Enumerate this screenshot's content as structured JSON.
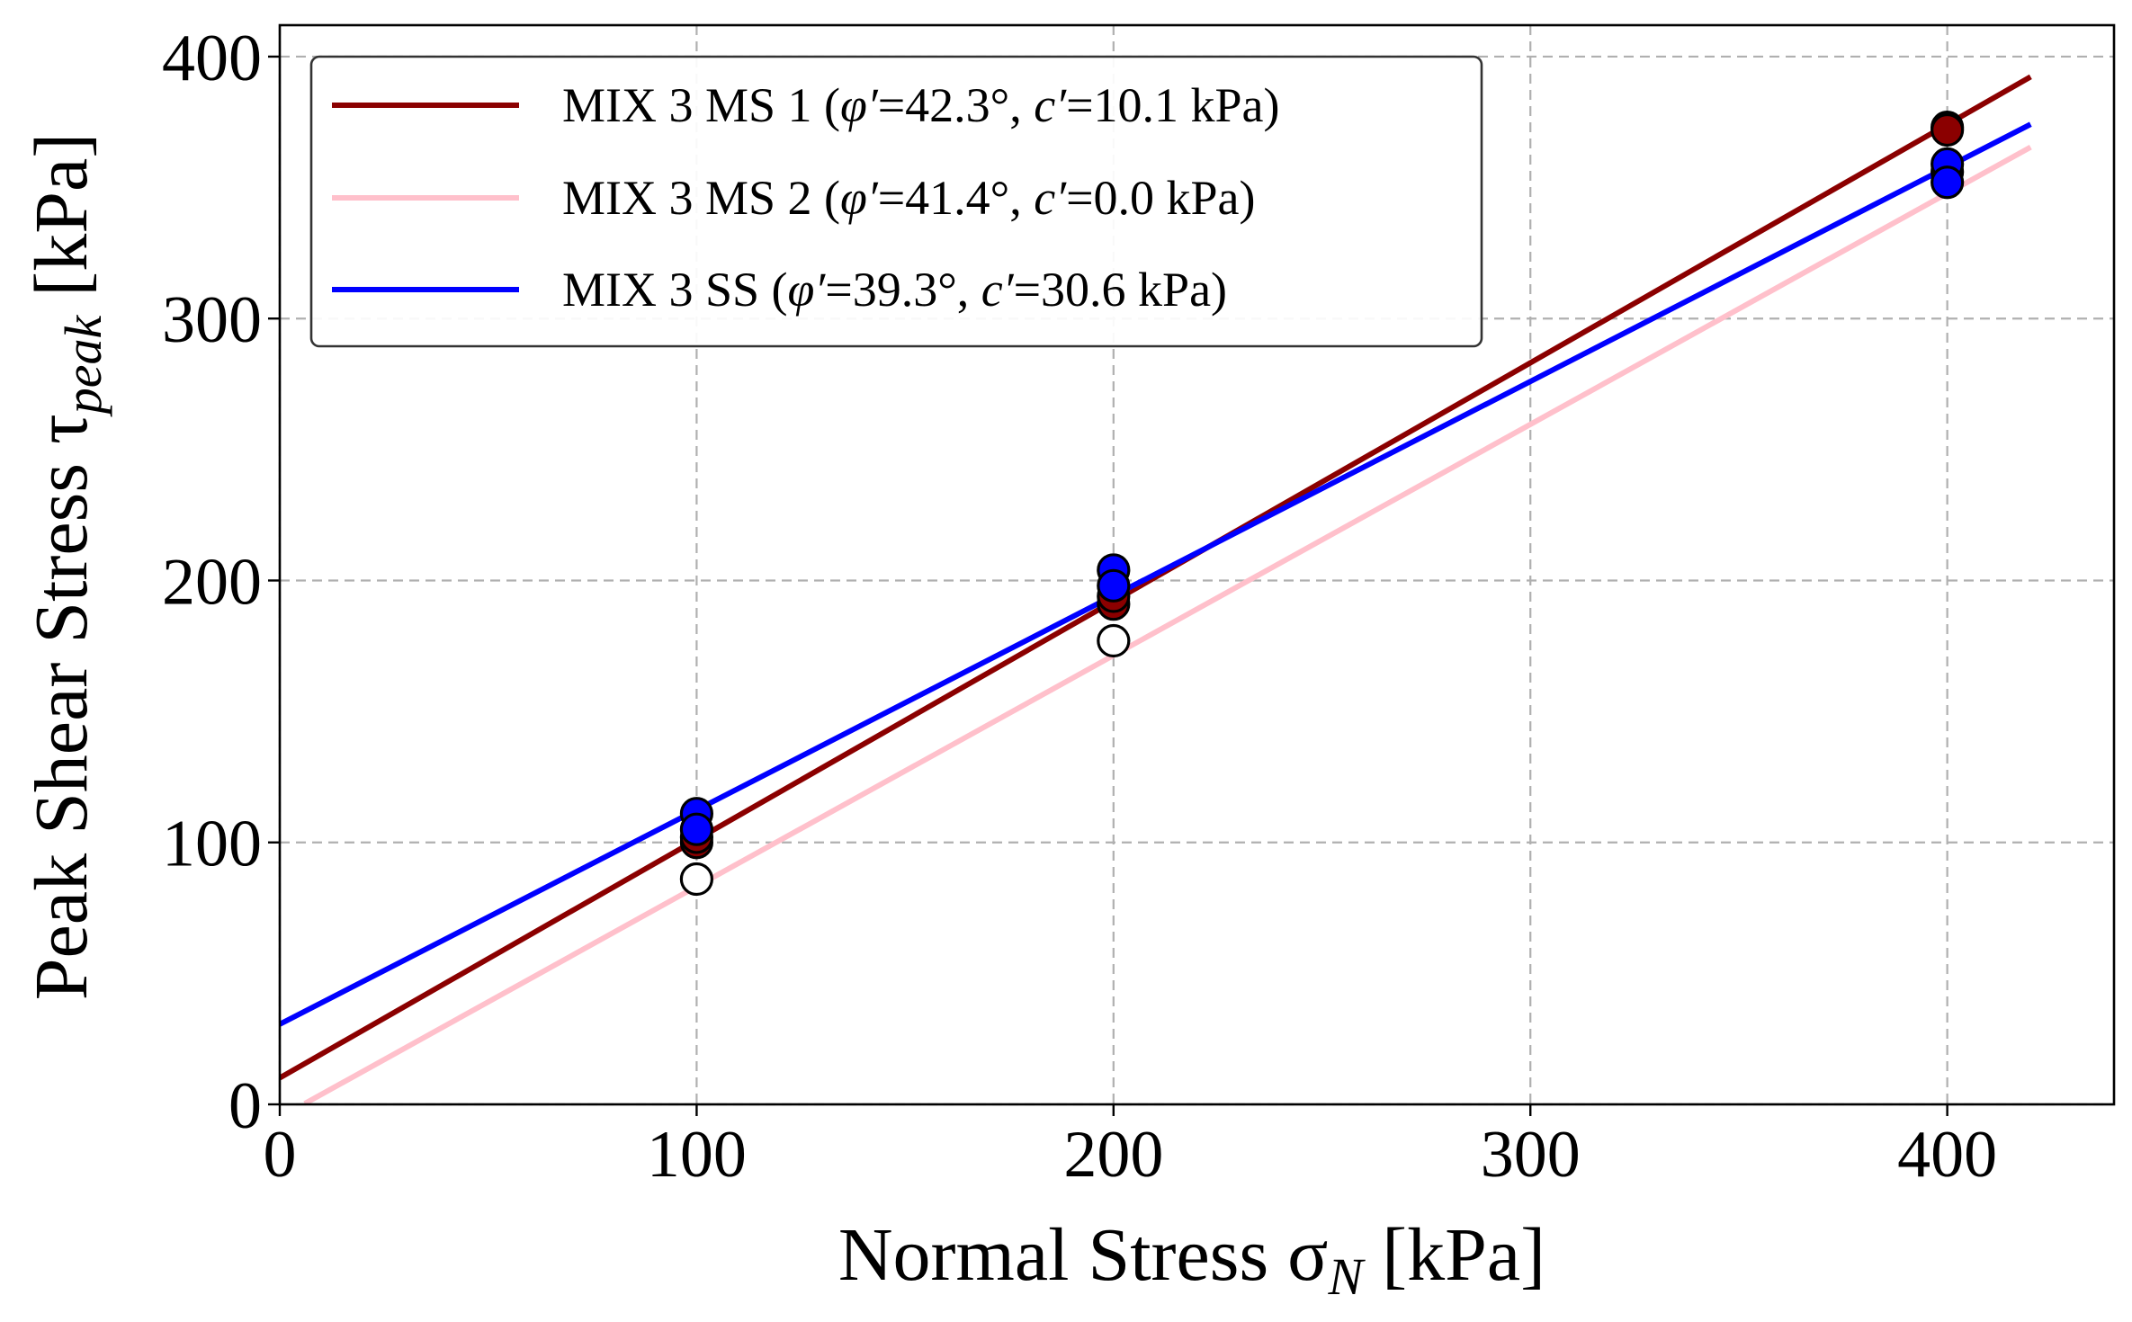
{
  "chart_data": {
    "type": "scatter",
    "xlabel": "Normal Stress σN [kPa]",
    "ylabel": "Peak Shear Stress τpeak [kPa]",
    "xlim": [
      0,
      440
    ],
    "ylim": [
      0,
      412
    ],
    "xticks": [
      0,
      100,
      200,
      300,
      400
    ],
    "yticks": [
      0,
      100,
      200,
      300,
      400
    ],
    "grid": true,
    "legend_position": "top-left",
    "x_labels": {
      "main": "Normal Stress σ",
      "sub": "N",
      "unit": " [kPa]"
    },
    "y_labels": {
      "main": "Peak Shear Stress τ",
      "sub": "peak",
      "unit": " [kPa]"
    },
    "series": [
      {
        "name": "MIX 3 MS 1 (φ′=42.3°, c′=10.1 kPa)",
        "color": "#8b0000",
        "marker_fill": "#8b0000",
        "fit": {
          "slope": 0.91,
          "intercept": 10.1,
          "x_range": [
            0,
            420
          ]
        },
        "points": [
          {
            "x": 100,
            "y": 100
          },
          {
            "x": 100,
            "y": 102
          },
          {
            "x": 200,
            "y": 191
          },
          {
            "x": 200,
            "y": 194
          },
          {
            "x": 400,
            "y": 373
          },
          {
            "x": 400,
            "y": 372
          }
        ]
      },
      {
        "name": "MIX 3 MS 2 (φ′=41.4°, c′=0.0 kPa)",
        "color": "#ffc0cb",
        "marker_fill": "#ffffff",
        "fit": {
          "slope": 0.882,
          "intercept": -5.0,
          "x_range": [
            6,
            420
          ]
        },
        "points": [
          {
            "x": 100,
            "y": 86
          },
          {
            "x": 200,
            "y": 177
          },
          {
            "x": 400,
            "y": 356
          }
        ]
      },
      {
        "name": "MIX 3 SS (φ′=39.3°, c′=30.6 kPa)",
        "color": "#0000ff",
        "marker_fill": "#0000ff",
        "fit": {
          "slope": 0.818,
          "intercept": 30.6,
          "x_range": [
            0,
            420
          ]
        },
        "points": [
          {
            "x": 100,
            "y": 111
          },
          {
            "x": 100,
            "y": 105
          },
          {
            "x": 200,
            "y": 204
          },
          {
            "x": 200,
            "y": 198
          },
          {
            "x": 400,
            "y": 359
          },
          {
            "x": 400,
            "y": 352
          }
        ]
      }
    ],
    "legend": [
      {
        "prefix": "MIX 3 MS 1 (",
        "phi": "φ′",
        "phi_val": "=42.3°, ",
        "c": "c′",
        "c_val": "=10.1 kPa)"
      },
      {
        "prefix": "MIX 3 MS 2 (",
        "phi": "φ′",
        "phi_val": "=41.4°, ",
        "c": "c′",
        "c_val": "=0.0 kPa)"
      },
      {
        "prefix": "MIX 3 SS (",
        "phi": "φ′",
        "phi_val": "=39.3°, ",
        "c": "c′",
        "c_val": "=30.6 kPa)"
      }
    ]
  }
}
